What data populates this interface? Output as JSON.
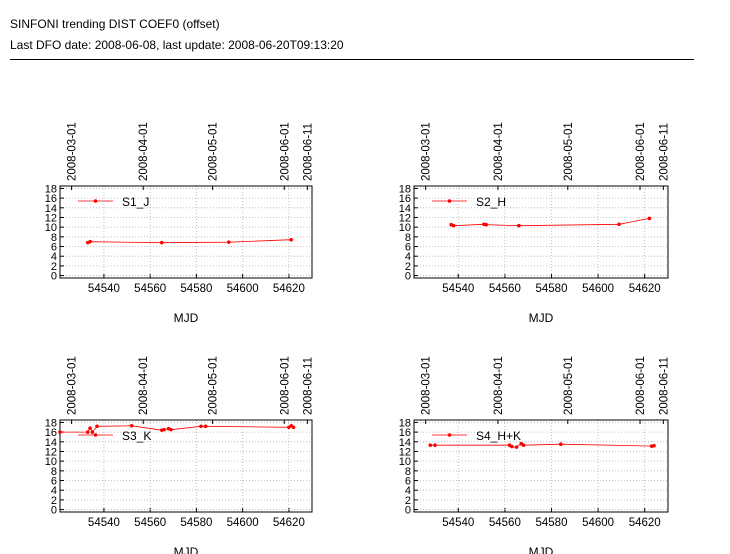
{
  "header": {
    "title": "SINFONI trending DIST COEF0 (offset)",
    "subtitle": "Last DFO date: 2008-06-08, last update: 2008-06-20T09:13:20"
  },
  "colors": {
    "series": "#ff0000",
    "grid": "#b0b0b0",
    "axis": "#000000"
  },
  "chart_data": [
    {
      "type": "line",
      "xlabel": "MJD",
      "xlim": [
        54521,
        54630
      ],
      "ylim": [
        18.5,
        -0.5
      ],
      "x_ticks": [
        "54540",
        "54560",
        "54580",
        "54600",
        "54620"
      ],
      "x_tick_values": [
        54540,
        54560,
        54580,
        54600,
        54620
      ],
      "y_ticks": [
        "0",
        "2",
        "4",
        "6",
        "8",
        "10",
        "12",
        "14",
        "16",
        "18"
      ],
      "y_tick_values": [
        0,
        2,
        4,
        6,
        8,
        10,
        12,
        14,
        16,
        18
      ],
      "top_dates": [
        "2008-03-01",
        "2008-04-01",
        "2008-05-01",
        "2008-06-01",
        "2008-06-11"
      ],
      "top_date_mjd": [
        54526,
        54557,
        54587,
        54618,
        54628
      ],
      "legend": "top-left",
      "grid": true,
      "series": [
        {
          "name": "S1_J",
          "x": [
            54533,
            54534,
            54565,
            54594,
            54621
          ],
          "y": [
            6.8,
            7.0,
            6.8,
            6.9,
            7.4
          ]
        }
      ]
    },
    {
      "type": "line",
      "xlabel": "MJD",
      "xlim": [
        54521,
        54630
      ],
      "ylim": [
        18.5,
        -0.5
      ],
      "x_ticks": [
        "54540",
        "54560",
        "54580",
        "54600",
        "54620"
      ],
      "x_tick_values": [
        54540,
        54560,
        54580,
        54600,
        54620
      ],
      "y_ticks": [
        "0",
        "2",
        "4",
        "6",
        "8",
        "10",
        "12",
        "14",
        "16",
        "18"
      ],
      "y_tick_values": [
        0,
        2,
        4,
        6,
        8,
        10,
        12,
        14,
        16,
        18
      ],
      "top_dates": [
        "2008-03-01",
        "2008-04-01",
        "2008-05-01",
        "2008-06-01",
        "2008-06-11"
      ],
      "top_date_mjd": [
        54526,
        54557,
        54587,
        54618,
        54628
      ],
      "legend": "top-left",
      "grid": true,
      "series": [
        {
          "name": "S2_H",
          "x": [
            54537,
            54538,
            54551,
            54552,
            54566,
            54609,
            54622
          ],
          "y": [
            10.5,
            10.3,
            10.6,
            10.5,
            10.3,
            10.6,
            11.8
          ]
        }
      ]
    },
    {
      "type": "line",
      "xlabel": "MJD",
      "xlim": [
        54521,
        54630
      ],
      "ylim": [
        18.5,
        -0.5
      ],
      "x_ticks": [
        "54540",
        "54560",
        "54580",
        "54600",
        "54620"
      ],
      "x_tick_values": [
        54540,
        54560,
        54580,
        54600,
        54620
      ],
      "y_ticks": [
        "0",
        "2",
        "4",
        "6",
        "8",
        "10",
        "12",
        "14",
        "16",
        "18"
      ],
      "y_tick_values": [
        0,
        2,
        4,
        6,
        8,
        10,
        12,
        14,
        16,
        18
      ],
      "top_dates": [
        "2008-03-01",
        "2008-04-01",
        "2008-05-01",
        "2008-06-01",
        "2008-06-11"
      ],
      "top_date_mjd": [
        54526,
        54557,
        54587,
        54618,
        54628
      ],
      "legend": "top-left",
      "grid": true,
      "series": [
        {
          "name": "S3_K",
          "x": [
            54521,
            54533,
            54534,
            54535,
            54537,
            54552,
            54565,
            54566,
            54568,
            54569,
            54582,
            54584,
            54620,
            54621,
            54622
          ],
          "y": [
            16.0,
            16.0,
            16.8,
            16.0,
            17.2,
            17.3,
            16.4,
            16.5,
            16.7,
            16.5,
            17.2,
            17.2,
            17.0,
            17.3,
            17.0
          ]
        }
      ]
    },
    {
      "type": "line",
      "xlabel": "MJD",
      "xlim": [
        54521,
        54630
      ],
      "ylim": [
        18.5,
        -0.5
      ],
      "x_ticks": [
        "54540",
        "54560",
        "54580",
        "54600",
        "54620"
      ],
      "x_tick_values": [
        54540,
        54560,
        54580,
        54600,
        54620
      ],
      "y_ticks": [
        "0",
        "2",
        "4",
        "6",
        "8",
        "10",
        "12",
        "14",
        "16",
        "18"
      ],
      "y_tick_values": [
        0,
        2,
        4,
        6,
        8,
        10,
        12,
        14,
        16,
        18
      ],
      "top_dates": [
        "2008-03-01",
        "2008-04-01",
        "2008-05-01",
        "2008-06-01",
        "2008-06-11"
      ],
      "top_date_mjd": [
        54526,
        54557,
        54587,
        54618,
        54628
      ],
      "legend": "top-left",
      "grid": true,
      "series": [
        {
          "name": "S4_H+K",
          "x": [
            54528,
            54530,
            54562,
            54563,
            54565,
            54567,
            54568,
            54584,
            54623,
            54624
          ],
          "y": [
            13.3,
            13.3,
            13.3,
            13.0,
            12.9,
            13.6,
            13.3,
            13.5,
            13.1,
            13.2
          ]
        }
      ]
    }
  ]
}
